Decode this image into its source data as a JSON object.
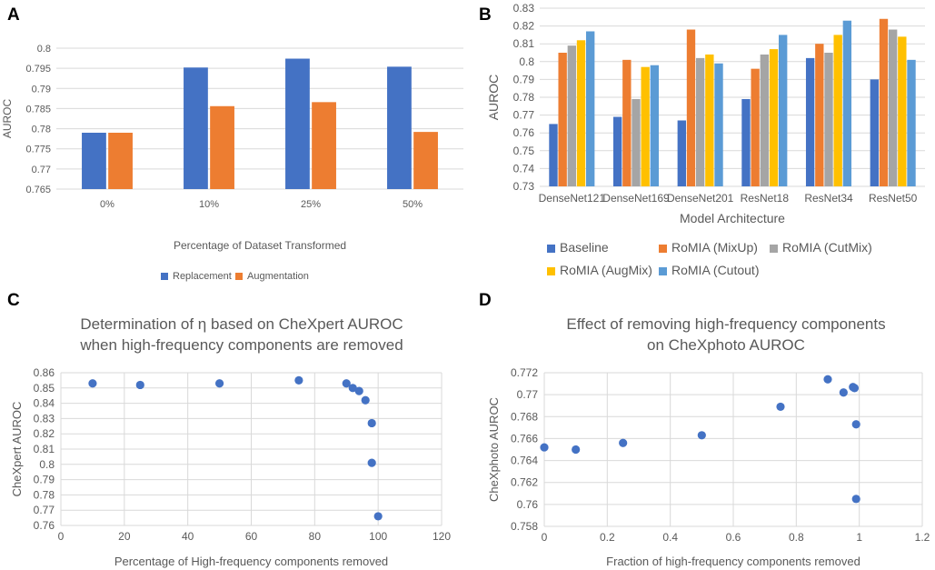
{
  "panel_letters": {
    "a": "A",
    "b": "B",
    "c": "C",
    "d": "D"
  },
  "chart_data": [
    {
      "id": "A",
      "type": "bar",
      "title": "",
      "xlabel": "Percentage of Dataset Transformed",
      "ylabel": "AUROC",
      "categories": [
        "0%",
        "10%",
        "25%",
        "50%"
      ],
      "ylim": [
        0.765,
        0.8
      ],
      "yticks": [
        "0.765",
        "0.77",
        "0.775",
        "0.78",
        "0.785",
        "0.79",
        "0.795",
        "0.8"
      ],
      "series": [
        {
          "name": "Replacement",
          "color": "#4472c4",
          "values": [
            0.779,
            0.7952,
            0.7974,
            0.7954
          ]
        },
        {
          "name": "Augmentation",
          "color": "#ed7d31",
          "values": [
            0.779,
            0.7856,
            0.7866,
            0.7792
          ]
        }
      ],
      "legend": "bottom",
      "grid": true
    },
    {
      "id": "B",
      "type": "bar",
      "title": "",
      "xlabel": "Model Architecture",
      "ylabel": "AUROC",
      "categories": [
        "DenseNet121",
        "DenseNet169",
        "DenseNet201",
        "ResNet18",
        "ResNet34",
        "ResNet50"
      ],
      "ylim": [
        0.73,
        0.83
      ],
      "yticks": [
        "0.73",
        "0.74",
        "0.75",
        "0.76",
        "0.77",
        "0.78",
        "0.79",
        "0.8",
        "0.81",
        "0.82",
        "0.83"
      ],
      "series": [
        {
          "name": "Baseline",
          "color": "#4472c4",
          "values": [
            0.765,
            0.769,
            0.767,
            0.779,
            0.802,
            0.79
          ]
        },
        {
          "name": "RoMIA (MixUp)",
          "color": "#ed7d31",
          "values": [
            0.805,
            0.801,
            0.818,
            0.796,
            0.81,
            0.824
          ]
        },
        {
          "name": "RoMIA (CutMix)",
          "color": "#a5a5a5",
          "values": [
            0.809,
            0.779,
            0.802,
            0.804,
            0.805,
            0.818
          ]
        },
        {
          "name": "RoMIA (AugMix)",
          "color": "#ffc000",
          "values": [
            0.812,
            0.797,
            0.804,
            0.807,
            0.815,
            0.814
          ]
        },
        {
          "name": "RoMIA (Cutout)",
          "color": "#5b9bd5",
          "values": [
            0.817,
            0.798,
            0.799,
            0.815,
            0.823,
            0.801
          ]
        }
      ],
      "legend": "bottom",
      "grid": true
    },
    {
      "id": "C",
      "type": "scatter",
      "title": "Determination of η based on CheXpert AUROC",
      "subtitle": "when high-frequency components are removed",
      "xlabel": "Percentage of High-frequency components removed",
      "ylabel": "CheXpert AUROC",
      "xlim": [
        0,
        120
      ],
      "ylim": [
        0.76,
        0.86
      ],
      "xticks": [
        "0",
        "20",
        "40",
        "60",
        "80",
        "100",
        "120"
      ],
      "yticks": [
        "0.76",
        "0.77",
        "0.78",
        "0.79",
        "0.8",
        "0.81",
        "0.82",
        "0.83",
        "0.84",
        "0.85",
        "0.86"
      ],
      "x": [
        10,
        25,
        50,
        75,
        90,
        92,
        94,
        96,
        98,
        98,
        100
      ],
      "y": [
        0.853,
        0.852,
        0.853,
        0.855,
        0.853,
        0.85,
        0.848,
        0.842,
        0.827,
        0.801,
        0.766
      ],
      "color": "#4472c4",
      "grid": true
    },
    {
      "id": "D",
      "type": "scatter",
      "title": "Effect of removing high-frequency components",
      "subtitle": "on CheXphoto AUROC",
      "xlabel": "Fraction of high-frequency components removed",
      "ylabel": "CheXphoto AUROC",
      "xlim": [
        0,
        1.2
      ],
      "ylim": [
        0.758,
        0.772
      ],
      "xticks": [
        "0",
        "0.2",
        "0.4",
        "0.6",
        "0.8",
        "1",
        "1.2"
      ],
      "yticks": [
        "0.758",
        "0.76",
        "0.762",
        "0.764",
        "0.766",
        "0.768",
        "0.77",
        "0.772"
      ],
      "x": [
        0,
        0.1,
        0.25,
        0.5,
        0.75,
        0.9,
        0.95,
        0.98,
        0.985,
        0.99,
        0.99
      ],
      "y": [
        0.7652,
        0.765,
        0.7656,
        0.7663,
        0.7689,
        0.7714,
        0.7702,
        0.7707,
        0.7706,
        0.7673,
        0.7605
      ],
      "color": "#4472c4",
      "grid": true
    }
  ]
}
